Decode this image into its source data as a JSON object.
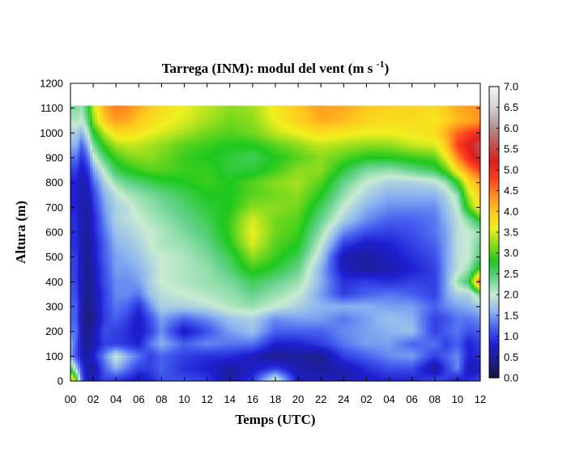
{
  "chart_data": {
    "type": "heatmap",
    "title": "Tarrega (INM): modul del vent",
    "title_units": "(m s",
    "title_units_exp": "-1",
    "title_units_close": ")",
    "xlabel": "Temps (UTC)",
    "ylabel": "Altura (m)",
    "x_ticks": [
      "00",
      "02",
      "04",
      "06",
      "08",
      "10",
      "12",
      "14",
      "16",
      "18",
      "20",
      "22",
      "24",
      "02",
      "04",
      "06",
      "08",
      "10",
      "12"
    ],
    "xlim_hours": [
      0,
      36
    ],
    "ylim": [
      0,
      1200
    ],
    "y_ticks": [
      0,
      100,
      200,
      300,
      400,
      500,
      600,
      700,
      800,
      900,
      1000,
      1100,
      1200
    ],
    "data_top": 1110,
    "colorbar": {
      "range": [
        0.0,
        7.0
      ],
      "ticks": [
        "0.0",
        "0.5",
        "1.0",
        "1.5",
        "2.0",
        "2.5",
        "3.0",
        "3.5",
        "4.0",
        "4.5",
        "5.0",
        "5.5",
        "6.0",
        "6.5",
        "7.0"
      ],
      "stops": [
        {
          "v": 0.0,
          "color": "#14143c"
        },
        {
          "v": 0.4,
          "color": "#1e1e8c"
        },
        {
          "v": 0.8,
          "color": "#1e1ed2"
        },
        {
          "v": 1.2,
          "color": "#4660f0"
        },
        {
          "v": 1.6,
          "color": "#8cb4f0"
        },
        {
          "v": 2.0,
          "color": "#c8ebd2"
        },
        {
          "v": 2.4,
          "color": "#64d28c"
        },
        {
          "v": 2.8,
          "color": "#1ec81e"
        },
        {
          "v": 3.2,
          "color": "#8cdc1e"
        },
        {
          "v": 3.6,
          "color": "#f0f01e"
        },
        {
          "v": 4.0,
          "color": "#ffc81e"
        },
        {
          "v": 4.4,
          "color": "#ff8c1e"
        },
        {
          "v": 4.8,
          "color": "#ff3c1e"
        },
        {
          "v": 5.2,
          "color": "#dc1e1e"
        },
        {
          "v": 5.6,
          "color": "#c85050"
        },
        {
          "v": 6.0,
          "color": "#b48c8c"
        },
        {
          "v": 6.5,
          "color": "#d2d2d2"
        },
        {
          "v": 7.0,
          "color": "#f5f5f5"
        }
      ]
    },
    "grid": false,
    "legend": "colorbar-right",
    "heights": [
      0,
      50,
      100,
      150,
      200,
      250,
      300,
      350,
      400,
      450,
      500,
      550,
      600,
      650,
      700,
      750,
      800,
      850,
      900,
      950,
      1000,
      1050,
      1110
    ],
    "hours": [
      0,
      0.5,
      1,
      1.5,
      2,
      3,
      4,
      5,
      6,
      7,
      8,
      10,
      12,
      14,
      16,
      18,
      20,
      22,
      24,
      26,
      28,
      30,
      32,
      33,
      34,
      35,
      36
    ],
    "values": [
      [
        4.6,
        3.0,
        1.2,
        0.6,
        0.7,
        1.0,
        0.9,
        0.8,
        0.6,
        0.8,
        1.1,
        1.1,
        1.0,
        0.5,
        1.0,
        2.2,
        0.7,
        0.7,
        0.6,
        0.7,
        0.8,
        0.8,
        1.1,
        1.0,
        0.7,
        0.9,
        1.1
      ],
      [
        2.6,
        1.8,
        1.0,
        0.6,
        0.5,
        1.2,
        1.6,
        1.3,
        1.0,
        1.0,
        1.2,
        0.9,
        0.8,
        0.5,
        0.7,
        1.0,
        0.6,
        0.5,
        0.6,
        0.9,
        1.1,
        1.1,
        0.5,
        1.0,
        1.4,
        0.6,
        0.7
      ],
      [
        1.5,
        1.1,
        0.7,
        0.5,
        0.8,
        1.4,
        2.0,
        1.6,
        1.3,
        1.0,
        1.2,
        1.0,
        0.9,
        0.9,
        0.7,
        0.4,
        0.5,
        0.4,
        1.0,
        1.2,
        1.4,
        1.5,
        1.0,
        1.2,
        1.4,
        0.8,
        0.9
      ],
      [
        1.6,
        1.2,
        0.6,
        0.4,
        0.6,
        1.0,
        1.0,
        0.9,
        0.8,
        1.3,
        1.6,
        1.2,
        1.4,
        1.3,
        1.3,
        0.8,
        0.8,
        1.0,
        1.3,
        1.5,
        1.5,
        1.2,
        1.3,
        1.0,
        1.2,
        0.8,
        1.0
      ],
      [
        1.3,
        1.3,
        0.6,
        0.4,
        0.6,
        1.1,
        1.0,
        0.9,
        0.7,
        1.0,
        1.4,
        0.7,
        1.1,
        1.5,
        1.7,
        1.2,
        1.2,
        1.2,
        1.4,
        1.5,
        1.6,
        1.7,
        1.0,
        1.2,
        1.3,
        1.1,
        1.2
      ],
      [
        1.2,
        1.2,
        0.5,
        0.3,
        0.4,
        1.0,
        1.2,
        1.0,
        0.7,
        1.1,
        1.5,
        1.2,
        1.4,
        1.7,
        1.8,
        1.4,
        1.5,
        1.5,
        1.3,
        1.5,
        1.7,
        1.6,
        1.0,
        1.1,
        1.3,
        1.3,
        1.4
      ],
      [
        1.2,
        1.2,
        0.6,
        0.4,
        0.5,
        1.0,
        1.3,
        1.2,
        0.9,
        1.4,
        1.8,
        1.8,
        1.9,
        2.1,
        2.2,
        2.0,
        1.8,
        1.6,
        1.6,
        1.6,
        1.5,
        1.5,
        1.2,
        1.4,
        1.5,
        1.6,
        1.7
      ],
      [
        1.1,
        1.1,
        0.6,
        0.4,
        0.5,
        1.0,
        1.4,
        1.4,
        1.3,
        1.7,
        1.9,
        2.0,
        2.1,
        2.2,
        2.4,
        2.2,
        2.0,
        1.5,
        1.0,
        1.2,
        1.3,
        1.2,
        1.0,
        1.5,
        1.8,
        1.8,
        2.4
      ],
      [
        1.1,
        1.0,
        0.6,
        0.4,
        0.6,
        1.1,
        1.4,
        1.4,
        1.5,
        1.8,
        2.0,
        2.1,
        2.2,
        2.3,
        2.6,
        2.4,
        2.2,
        1.6,
        0.9,
        1.0,
        0.9,
        1.0,
        1.0,
        1.5,
        2.2,
        2.6,
        4.8
      ],
      [
        1.0,
        1.0,
        0.6,
        0.4,
        0.6,
        1.1,
        1.5,
        1.5,
        1.6,
        1.8,
        2.0,
        2.1,
        2.2,
        2.5,
        2.9,
        2.7,
        2.4,
        1.6,
        0.7,
        0.5,
        0.6,
        0.8,
        1.0,
        1.5,
        1.9,
        2.2,
        3.0
      ],
      [
        1.0,
        1.0,
        0.6,
        0.4,
        0.7,
        1.2,
        1.5,
        1.6,
        1.7,
        1.9,
        2.0,
        2.1,
        2.3,
        2.6,
        3.2,
        2.9,
        2.6,
        1.8,
        0.6,
        0.5,
        0.7,
        0.9,
        1.1,
        1.5,
        1.9,
        2.0,
        2.5
      ],
      [
        0.9,
        0.9,
        0.6,
        0.4,
        0.7,
        1.2,
        1.6,
        1.7,
        1.8,
        2.0,
        2.1,
        2.2,
        2.4,
        2.8,
        3.5,
        3.0,
        2.8,
        2.0,
        1.0,
        0.7,
        0.8,
        1.0,
        1.2,
        1.5,
        1.9,
        2.0,
        2.4
      ],
      [
        0.9,
        0.9,
        0.6,
        0.5,
        0.8,
        1.3,
        1.7,
        1.8,
        1.9,
        2.0,
        2.1,
        2.3,
        2.5,
        2.9,
        3.6,
        3.1,
        2.9,
        2.2,
        1.4,
        1.1,
        1.0,
        1.1,
        1.3,
        1.5,
        1.9,
        2.0,
        2.2
      ],
      [
        0.9,
        0.9,
        0.6,
        0.5,
        0.8,
        1.4,
        1.8,
        1.9,
        2.0,
        2.1,
        2.2,
        2.4,
        2.6,
        2.9,
        3.5,
        3.1,
        3.0,
        2.4,
        1.8,
        1.4,
        1.2,
        1.2,
        1.3,
        1.6,
        1.9,
        2.3,
        2.8
      ],
      [
        0.8,
        0.8,
        0.6,
        0.5,
        0.9,
        1.5,
        1.8,
        1.9,
        2.1,
        2.2,
        2.3,
        2.5,
        2.7,
        2.8,
        3.2,
        3.2,
        3.1,
        2.6,
        2.0,
        1.6,
        1.4,
        1.4,
        1.4,
        1.7,
        2.0,
        3.0,
        3.8
      ],
      [
        0.8,
        0.8,
        0.6,
        0.6,
        1.0,
        1.6,
        1.9,
        2.1,
        2.2,
        2.3,
        2.4,
        2.6,
        2.8,
        2.8,
        3.0,
        3.1,
        3.2,
        2.8,
        2.2,
        1.8,
        1.6,
        1.6,
        1.6,
        1.8,
        2.2,
        3.4,
        4.0
      ],
      [
        0.8,
        0.8,
        0.6,
        0.7,
        1.2,
        1.8,
        2.2,
        2.4,
        2.5,
        2.6,
        2.7,
        2.8,
        2.9,
        2.8,
        3.0,
        3.2,
        3.3,
        3.0,
        2.4,
        2.0,
        1.8,
        1.8,
        1.9,
        2.2,
        2.8,
        3.8,
        4.2
      ],
      [
        1.0,
        1.0,
        0.7,
        0.9,
        1.5,
        2.1,
        2.6,
        2.8,
        2.9,
        3.0,
        3.0,
        2.9,
        2.9,
        2.7,
        2.7,
        2.9,
        3.2,
        3.2,
        2.7,
        2.3,
        2.2,
        2.4,
        2.6,
        3.0,
        3.8,
        4.4,
        4.8
      ],
      [
        1.3,
        1.3,
        0.9,
        1.2,
        1.9,
        2.5,
        2.9,
        3.1,
        3.2,
        3.2,
        3.1,
        2.9,
        2.8,
        2.7,
        2.6,
        2.8,
        3.0,
        3.2,
        3.0,
        2.8,
        2.8,
        2.9,
        3.0,
        3.6,
        4.4,
        5.0,
        5.4
      ],
      [
        1.6,
        1.6,
        1.2,
        1.6,
        2.3,
        2.9,
        3.3,
        3.4,
        3.4,
        3.3,
        3.2,
        3.0,
        2.9,
        2.8,
        2.8,
        3.0,
        3.2,
        3.4,
        3.3,
        3.2,
        3.2,
        3.4,
        3.5,
        4.0,
        4.8,
        5.2,
        5.6
      ],
      [
        1.8,
        1.8,
        1.6,
        2.0,
        2.7,
        3.4,
        3.8,
        3.8,
        3.7,
        3.6,
        3.5,
        3.3,
        3.1,
        3.0,
        3.1,
        3.4,
        3.6,
        3.8,
        3.7,
        3.6,
        3.6,
        3.7,
        3.8,
        4.2,
        4.6,
        4.8,
        5.0
      ],
      [
        2.1,
        2.1,
        2.0,
        2.4,
        3.2,
        4.0,
        4.3,
        4.2,
        4.0,
        3.8,
        3.7,
        3.5,
        3.3,
        3.1,
        3.2,
        3.6,
        3.9,
        4.2,
        4.1,
        3.9,
        3.8,
        3.8,
        3.7,
        3.9,
        4.1,
        4.2,
        4.3
      ],
      [
        2.3,
        2.3,
        2.2,
        2.6,
        3.4,
        4.2,
        4.5,
        4.4,
        4.2,
        4.0,
        3.8,
        3.6,
        3.4,
        3.2,
        3.3,
        3.7,
        4.0,
        4.3,
        4.2,
        4.0,
        3.9,
        3.9,
        3.8,
        4.0,
        4.2,
        4.3,
        4.4
      ]
    ]
  }
}
